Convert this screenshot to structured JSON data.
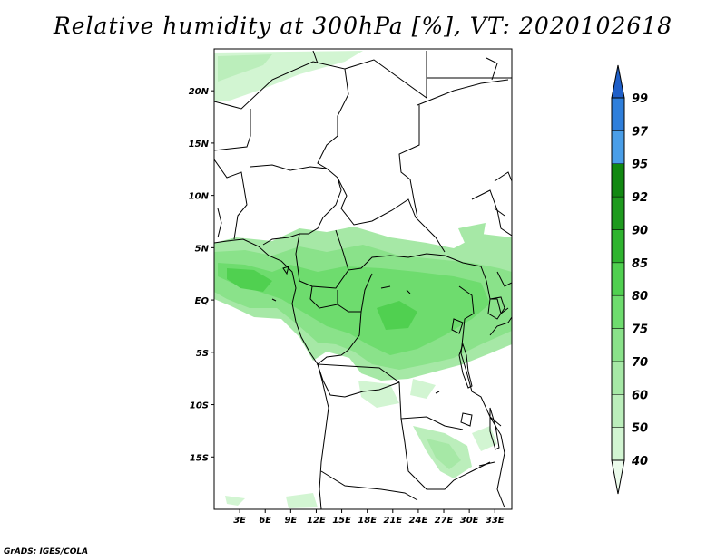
{
  "title": "Relative humidity at 300hPa [%], VT: 2020102618",
  "credit": "GrADS: IGES/COLA",
  "chart_data": {
    "type": "heatmap",
    "variable": "Relative humidity",
    "level": "300hPa",
    "units": "%",
    "valid_time": "2020102618",
    "lon_range": [
      0,
      35
    ],
    "lat_range": [
      -20,
      24
    ],
    "x_ticks": [
      "3E",
      "6E",
      "9E",
      "12E",
      "15E",
      "18E",
      "21E",
      "24E",
      "27E",
      "30E",
      "33E"
    ],
    "y_ticks": [
      "20N",
      "15N",
      "10N",
      "5N",
      "EQ",
      "5S",
      "10S",
      "15S"
    ],
    "colorbar": {
      "levels": [
        "40",
        "50",
        "60",
        "70",
        "75",
        "80",
        "85",
        "90",
        "92",
        "95",
        "97",
        "99"
      ],
      "colors": [
        "#ebfbeb",
        "#d2f5d2",
        "#bbeebb",
        "#a6e8a6",
        "#8ae28a",
        "#6edc6e",
        "#50d050",
        "#2fb42f",
        "#1e9a1e",
        "#118811",
        "#4a9ee8",
        "#2f7fdb",
        "#1f5fc8"
      ]
    }
  }
}
